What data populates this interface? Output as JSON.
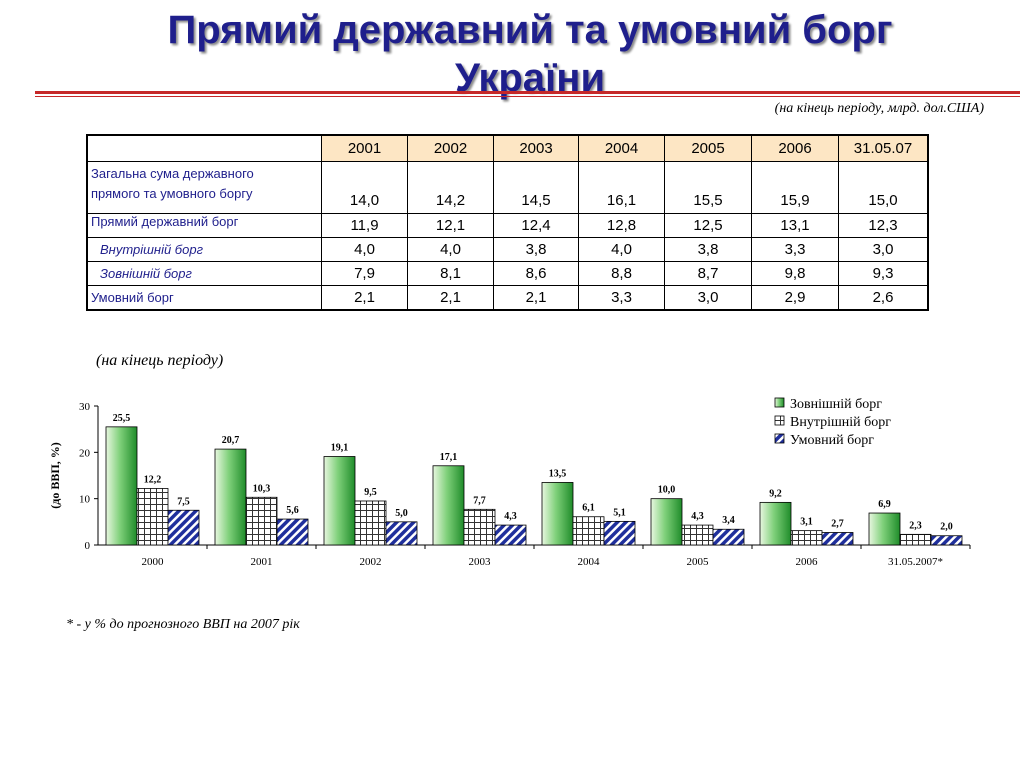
{
  "title": {
    "line1": "Прямий державний та умовний борг",
    "line2": "України"
  },
  "unit_note": "(на кінець періоду, млрд. дол.США)",
  "table": {
    "headers": [
      "2001",
      "2002",
      "2003",
      "2004",
      "2005",
      "2006",
      "31.05.07"
    ],
    "rows": [
      {
        "label_line1": "Загальна сума державного",
        "label_line2": "прямого та умовного боргу",
        "values": [
          "14,0",
          "14,2",
          "14,5",
          "16,1",
          "15,5",
          "15,9",
          "15,0"
        ]
      },
      {
        "label": "Прямий державний борг",
        "values": [
          "11,9",
          "12,1",
          "12,4",
          "12,8",
          "12,5",
          "13,1",
          "12,3"
        ]
      },
      {
        "label": "Внутрішній борг",
        "values": [
          "4,0",
          "4,0",
          "3,8",
          "4,0",
          "3,8",
          "3,3",
          "3,0"
        ]
      },
      {
        "label": "Зовнішній борг",
        "values": [
          "7,9",
          "8,1",
          "8,6",
          "8,8",
          "8,7",
          "9,8",
          "9,3"
        ]
      },
      {
        "label": "Умовний борг",
        "values": [
          "2,1",
          "2,1",
          "2,1",
          "3,3",
          "3,0",
          "2,9",
          "2,6"
        ]
      }
    ]
  },
  "period_note": "(на кінець періоду)",
  "footnote": "* - у % до прогнозного ВВП на 2007 рік",
  "chart_data": {
    "type": "bar",
    "ylabel": "(до ВВП, %)",
    "ylim": [
      0,
      30
    ],
    "yticks": [
      0,
      10,
      20,
      30
    ],
    "grid": false,
    "legend_position": "top-right",
    "categories": [
      "2000",
      "2001",
      "2002",
      "2003",
      "2004",
      "2005",
      "2006",
      "31.05.2007*"
    ],
    "series": [
      {
        "name": "Зовнішній борг",
        "pattern": "green-gradient",
        "color": "#3fa83f",
        "values": [
          25.5,
          20.7,
          19.1,
          17.1,
          13.5,
          10.0,
          9.2,
          6.9
        ],
        "labels": [
          "25,5",
          "20,7",
          "19,1",
          "17,1",
          "13,5",
          "10,0",
          "9,2",
          "6,9"
        ]
      },
      {
        "name": "Внутрішній борг",
        "pattern": "grid",
        "color": "#555555",
        "values": [
          12.2,
          10.3,
          9.5,
          7.7,
          6.1,
          4.3,
          3.1,
          2.3
        ],
        "labels": [
          "12,2",
          "10,3",
          "9,5",
          "7,7",
          "6,1",
          "4,3",
          "3,1",
          "2,3"
        ]
      },
      {
        "name": "Умовний борг",
        "pattern": "diagonal-stripes",
        "color": "#1f2f9c",
        "values": [
          7.5,
          5.6,
          5.0,
          4.3,
          5.1,
          3.4,
          2.7,
          2.0
        ],
        "labels": [
          "7,5",
          "5,6",
          "5,0",
          "4,3",
          "5,1",
          "3,4",
          "2,7",
          "2,0"
        ]
      }
    ]
  }
}
